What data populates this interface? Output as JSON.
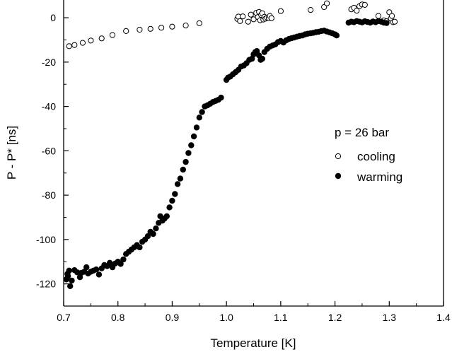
{
  "chart_data": {
    "type": "scatter",
    "xlabel": "Temperature [K]",
    "ylabel": "P - P* [ns]",
    "xlim": [
      0.7,
      1.4
    ],
    "ylim": [
      -130,
      8
    ],
    "xticks": [
      "0.7",
      "0.8",
      "0.9",
      "1.0",
      "1.1",
      "1.2",
      "1.3",
      "1.4"
    ],
    "yticks": [
      "0",
      "-20",
      "-40",
      "-60",
      "-80",
      "-100",
      "-120"
    ],
    "annotation": "p = 26 bar",
    "grid": false,
    "legend_position": "center-right",
    "series": [
      {
        "name": "cooling",
        "marker": "open-circle",
        "points": [
          [
            0.71,
            -12.8
          ],
          [
            0.72,
            -12.3
          ],
          [
            0.735,
            -11.3
          ],
          [
            0.75,
            -10.3
          ],
          [
            0.77,
            -9.3
          ],
          [
            0.79,
            -7.8
          ],
          [
            0.815,
            -6.0
          ],
          [
            0.84,
            -5.4
          ],
          [
            0.86,
            -5.0
          ],
          [
            0.88,
            -4.5
          ],
          [
            0.9,
            -4.0
          ],
          [
            0.925,
            -3.5
          ],
          [
            0.95,
            -2.5
          ],
          [
            1.02,
            -0.5
          ],
          [
            1.022,
            0.5
          ],
          [
            1.025,
            -1.5
          ],
          [
            1.03,
            0.6
          ],
          [
            1.04,
            -1.8
          ],
          [
            1.045,
            1.4
          ],
          [
            1.05,
            -0.7
          ],
          [
            1.055,
            2.2
          ],
          [
            1.058,
            0.3
          ],
          [
            1.06,
            2.6
          ],
          [
            1.062,
            -1.1
          ],
          [
            1.064,
            1.3
          ],
          [
            1.066,
            2.0
          ],
          [
            1.068,
            -0.8
          ],
          [
            1.07,
            0.4
          ],
          [
            1.072,
            -0.4
          ],
          [
            1.075,
            0.0
          ],
          [
            1.078,
            -0.1
          ],
          [
            1.08,
            0.8
          ],
          [
            1.083,
            -0.2
          ],
          [
            1.1,
            3.0
          ],
          [
            1.155,
            3.5
          ],
          [
            1.18,
            4.8
          ],
          [
            1.185,
            6.5
          ],
          [
            1.23,
            3.8
          ],
          [
            1.235,
            4.5
          ],
          [
            1.24,
            3.2
          ],
          [
            1.245,
            5.2
          ],
          [
            1.25,
            6.0
          ],
          [
            1.255,
            5.8
          ],
          [
            1.28,
            0.8
          ],
          [
            1.29,
            -1.2
          ],
          [
            1.295,
            -1.6
          ],
          [
            1.3,
            2.5
          ],
          [
            1.303,
            -0.3
          ],
          [
            1.305,
            0.8
          ],
          [
            1.307,
            -2.0
          ],
          [
            1.31,
            -1.8
          ]
        ]
      },
      {
        "name": "warming",
        "marker": "filled-circle",
        "points": [
          [
            0.705,
            -118.0
          ],
          [
            0.707,
            -115.5
          ],
          [
            0.708,
            -116.5
          ],
          [
            0.71,
            -114.0
          ],
          [
            0.712,
            -121.0
          ],
          [
            0.715,
            -118.5
          ],
          [
            0.72,
            -113.8
          ],
          [
            0.725,
            -114.8
          ],
          [
            0.73,
            -117.0
          ],
          [
            0.733,
            -115.0
          ],
          [
            0.738,
            -114.5
          ],
          [
            0.742,
            -112.5
          ],
          [
            0.745,
            -115.3
          ],
          [
            0.75,
            -114.5
          ],
          [
            0.755,
            -114.0
          ],
          [
            0.76,
            -113.5
          ],
          [
            0.765,
            -115.8
          ],
          [
            0.77,
            -113.0
          ],
          [
            0.775,
            -111.5
          ],
          [
            0.78,
            -112.0
          ],
          [
            0.785,
            -110.5
          ],
          [
            0.79,
            -112.5
          ],
          [
            0.795,
            -110.8
          ],
          [
            0.8,
            -110.0
          ],
          [
            0.805,
            -111.0
          ],
          [
            0.81,
            -109.0
          ],
          [
            0.815,
            -106.5
          ],
          [
            0.82,
            -105.5
          ],
          [
            0.825,
            -104.5
          ],
          [
            0.83,
            -103.5
          ],
          [
            0.835,
            -102.5
          ],
          [
            0.84,
            -103.5
          ],
          [
            0.845,
            -101.0
          ],
          [
            0.85,
            -100.0
          ],
          [
            0.855,
            -98.5
          ],
          [
            0.86,
            -96.5
          ],
          [
            0.865,
            -97.5
          ],
          [
            0.87,
            -95.0
          ],
          [
            0.875,
            -92.5
          ],
          [
            0.878,
            -89.5
          ],
          [
            0.882,
            -91.5
          ],
          [
            0.886,
            -90.5
          ],
          [
            0.89,
            -89.5
          ],
          [
            0.895,
            -85.5
          ],
          [
            0.9,
            -82.5
          ],
          [
            0.905,
            -79.5
          ],
          [
            0.91,
            -75.0
          ],
          [
            0.915,
            -72.5
          ],
          [
            0.92,
            -68.5
          ],
          [
            0.925,
            -65.0
          ],
          [
            0.93,
            -61.0
          ],
          [
            0.935,
            -57.5
          ],
          [
            0.94,
            -53.5
          ],
          [
            0.945,
            -49.5
          ],
          [
            0.95,
            -45.0
          ],
          [
            0.955,
            -42.5
          ],
          [
            0.96,
            -40.0
          ],
          [
            0.965,
            -39.5
          ],
          [
            0.97,
            -38.8
          ],
          [
            0.975,
            -38.0
          ],
          [
            0.98,
            -37.5
          ],
          [
            0.985,
            -37.0
          ],
          [
            0.99,
            -36.0
          ],
          [
            1.0,
            -28.0
          ],
          [
            1.003,
            -27.0
          ],
          [
            1.007,
            -26.5
          ],
          [
            1.012,
            -25.5
          ],
          [
            1.017,
            -24.5
          ],
          [
            1.022,
            -23.5
          ],
          [
            1.027,
            -22.0
          ],
          [
            1.032,
            -21.5
          ],
          [
            1.037,
            -20.5
          ],
          [
            1.042,
            -19.0
          ],
          [
            1.047,
            -18.5
          ],
          [
            1.05,
            -16.5
          ],
          [
            1.053,
            -15.5
          ],
          [
            1.056,
            -15.0
          ],
          [
            1.06,
            -17.0
          ],
          [
            1.063,
            -19.0
          ],
          [
            1.066,
            -18.5
          ],
          [
            1.07,
            -15.5
          ],
          [
            1.075,
            -14.0
          ],
          [
            1.08,
            -13.0
          ],
          [
            1.085,
            -12.5
          ],
          [
            1.09,
            -12.0
          ],
          [
            1.095,
            -11.0
          ],
          [
            1.1,
            -10.5
          ],
          [
            1.105,
            -11.2
          ],
          [
            1.11,
            -10.2
          ],
          [
            1.115,
            -9.6
          ],
          [
            1.12,
            -9.2
          ],
          [
            1.125,
            -8.9
          ],
          [
            1.13,
            -8.5
          ],
          [
            1.135,
            -8.2
          ],
          [
            1.14,
            -8.0
          ],
          [
            1.145,
            -7.5
          ],
          [
            1.15,
            -7.2
          ],
          [
            1.155,
            -7.0
          ],
          [
            1.16,
            -6.8
          ],
          [
            1.165,
            -6.5
          ],
          [
            1.17,
            -6.3
          ],
          [
            1.175,
            -6.0
          ],
          [
            1.18,
            -5.8
          ],
          [
            1.185,
            -6.2
          ],
          [
            1.19,
            -6.6
          ],
          [
            1.195,
            -7.0
          ],
          [
            1.2,
            -7.5
          ],
          [
            1.203,
            -8.0
          ],
          [
            1.225,
            -2.2
          ],
          [
            1.23,
            -1.8
          ],
          [
            1.235,
            -2.0
          ],
          [
            1.24,
            -1.5
          ],
          [
            1.245,
            -1.8
          ],
          [
            1.25,
            -2.1
          ],
          [
            1.255,
            -1.6
          ],
          [
            1.26,
            -1.9
          ],
          [
            1.265,
            -2.2
          ],
          [
            1.27,
            -1.7
          ],
          [
            1.275,
            -2.0
          ],
          [
            1.28,
            -1.5
          ],
          [
            1.285,
            -1.8
          ],
          [
            1.29,
            -2.2
          ],
          [
            1.295,
            -2.4
          ]
        ]
      }
    ]
  }
}
